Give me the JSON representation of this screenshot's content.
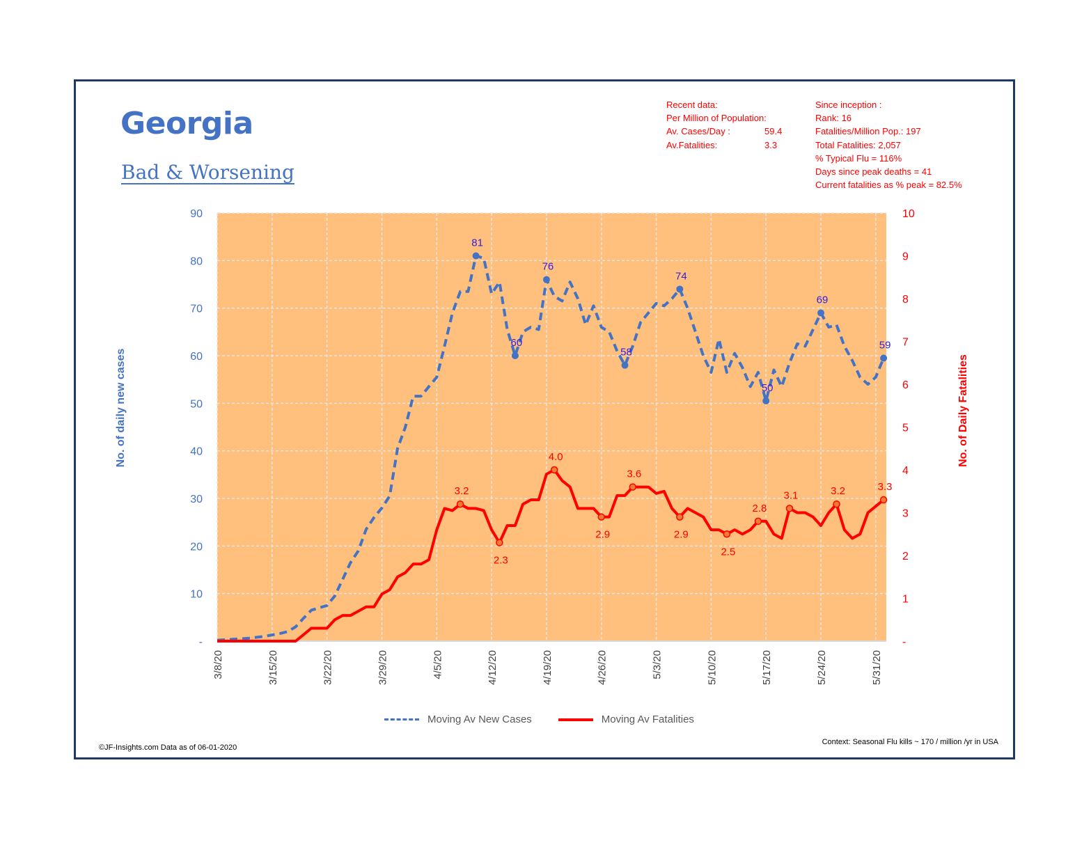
{
  "header": {
    "title": "Georgia",
    "subtitle": "Bad & Worsening"
  },
  "recent_data": {
    "heading": "Recent data:",
    "per_million": "Per Million of Population:",
    "cases_label": "Av. Cases/Day :",
    "cases_value": "59.4",
    "fatalities_label": "Av.Fatalities:",
    "fatalities_value": "3.3"
  },
  "since_inception": {
    "heading": "Since inception :",
    "rank": "Rank: 16",
    "fatalities_per_million": "Fatalities/Million Pop.: 197",
    "total_fatalities": "Total Fatalities: 2,057",
    "typical_flu": "% Typical Flu = 116%",
    "days_since_peak": "Days since peak deaths = 41",
    "current_pct_peak": "Current fatalities as % peak = 82.5%"
  },
  "footer": {
    "left": "©JF-Insights.com  Data as of 06-01-2020",
    "right": "Context: Seasonal Flu kills ~ 170 / million /yr in USA"
  },
  "colors": {
    "cases": "#4472c4",
    "fatalities": "#ff0000",
    "plot_bg": "#fec07c",
    "annotation_cases": "#2e1ee6",
    "frame": "#1f3864"
  },
  "chart_data": {
    "type": "line",
    "title": "Georgia",
    "xlabel": "",
    "ylabel_left": "No. of daily new cases",
    "ylabel_right": "No. of Daily Fatalities",
    "ylim_left": [
      0,
      90
    ],
    "ylim_right": [
      0,
      10
    ],
    "yticks_left": [
      "-",
      "10",
      "20",
      "30",
      "40",
      "50",
      "60",
      "70",
      "80",
      "90"
    ],
    "yticks_right": [
      "-",
      "1",
      "2",
      "3",
      "4",
      "5",
      "6",
      "7",
      "8",
      "9",
      "10"
    ],
    "x_start": "3/8/20",
    "x_tick_labels": [
      "3/8/20",
      "3/15/20",
      "3/22/20",
      "3/29/20",
      "4/5/20",
      "4/12/20",
      "4/19/20",
      "4/26/20",
      "5/3/20",
      "5/10/20",
      "5/17/20",
      "5/24/20",
      "5/31/20"
    ],
    "grid": true,
    "legend_position": "bottom",
    "series": [
      {
        "name": "Moving Av New Cases",
        "axis": "left",
        "style": "dashed",
        "values": [
          0.2,
          0.3,
          0.4,
          0.5,
          0.6,
          0.8,
          1.0,
          1.3,
          1.6,
          2.0,
          3.0,
          4.8,
          6.5,
          7.0,
          7.5,
          9.5,
          13,
          16.5,
          19,
          23.5,
          26,
          28,
          30.5,
          40.5,
          45,
          51.5,
          51.5,
          53.5,
          55.5,
          62,
          69,
          73.5,
          73.5,
          81,
          80.5,
          73,
          75.5,
          65.5,
          60,
          65,
          66,
          65.5,
          76,
          72.5,
          71.5,
          75.5,
          72,
          66.5,
          70.5,
          66,
          65,
          61,
          58,
          62,
          67,
          69,
          71,
          70.5,
          72,
          74,
          70,
          65,
          60,
          56.5,
          63.5,
          56.5,
          60.5,
          57.5,
          53.5,
          56.5,
          50.5,
          57,
          53.5,
          58.5,
          62.5,
          62,
          65.5,
          69,
          66,
          66.5,
          62,
          59,
          55.5,
          54,
          55.5,
          59.5
        ],
        "annotations": [
          {
            "index": 33,
            "label": "81"
          },
          {
            "index": 38,
            "label": "60"
          },
          {
            "index": 42,
            "label": "76"
          },
          {
            "index": 52,
            "label": "58"
          },
          {
            "index": 59,
            "label": "74"
          },
          {
            "index": 70,
            "label": "50"
          },
          {
            "index": 77,
            "label": "69"
          },
          {
            "index": 85,
            "label": "59"
          }
        ]
      },
      {
        "name": "Moving Av Fatalities",
        "axis": "right",
        "style": "solid",
        "values": [
          0,
          0,
          0,
          0,
          0,
          0,
          0,
          0,
          0,
          0,
          0,
          0.15,
          0.3,
          0.3,
          0.3,
          0.5,
          0.6,
          0.6,
          0.7,
          0.8,
          0.8,
          1.1,
          1.2,
          1.5,
          1.6,
          1.8,
          1.8,
          1.9,
          2.6,
          3.1,
          3.05,
          3.2,
          3.1,
          3.1,
          3.05,
          2.6,
          2.3,
          2.7,
          2.7,
          3.2,
          3.3,
          3.3,
          3.9,
          4.0,
          3.75,
          3.6,
          3.1,
          3.1,
          3.1,
          2.9,
          2.9,
          3.4,
          3.4,
          3.6,
          3.6,
          3.6,
          3.45,
          3.5,
          3.1,
          2.9,
          3.1,
          3.0,
          2.9,
          2.6,
          2.6,
          2.5,
          2.6,
          2.5,
          2.6,
          2.8,
          2.8,
          2.5,
          2.4,
          3.1,
          3.0,
          3.0,
          2.9,
          2.7,
          3.0,
          3.2,
          2.6,
          2.4,
          2.5,
          3.0,
          3.15,
          3.3
        ],
        "annotations": [
          {
            "index": 31,
            "label": "3.2"
          },
          {
            "index": 36,
            "label": "2.3"
          },
          {
            "index": 43,
            "label": "4.0"
          },
          {
            "index": 49,
            "label": "2.9"
          },
          {
            "index": 53,
            "label": "3.6"
          },
          {
            "index": 59,
            "label": "2.9"
          },
          {
            "index": 65,
            "label": "2.5"
          },
          {
            "index": 69,
            "label": "2.8"
          },
          {
            "index": 73,
            "label": "3.1"
          },
          {
            "index": 79,
            "label": "3.2"
          },
          {
            "index": 85,
            "label": "3.3"
          }
        ]
      }
    ]
  }
}
